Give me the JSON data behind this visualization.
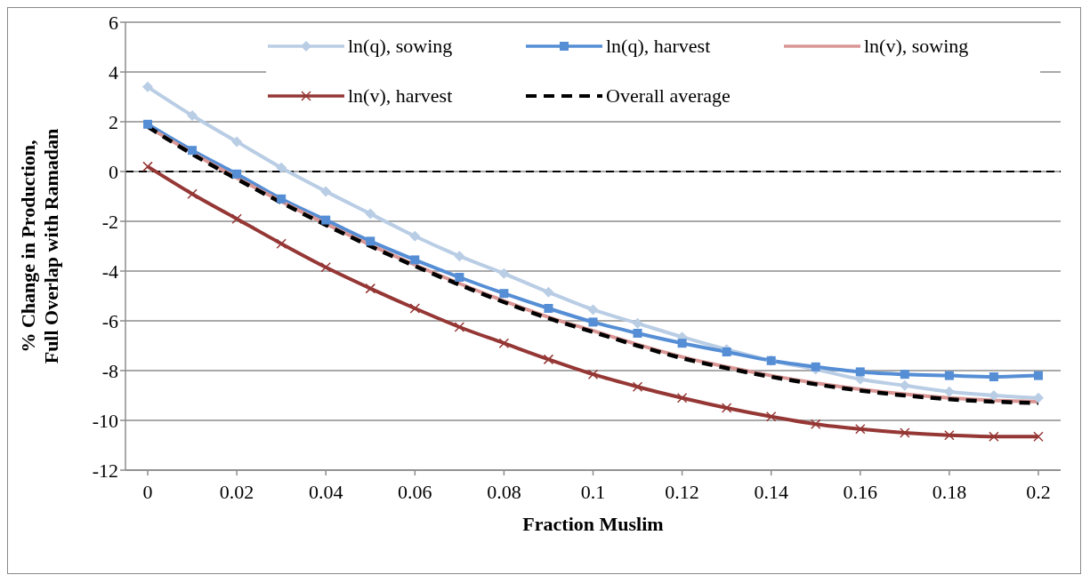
{
  "chart_data": {
    "type": "line",
    "xlabel": "Fraction Muslim",
    "ylabel": "% Change in Production, Full Overlap with Ramadan",
    "x": [
      0,
      0.01,
      0.02,
      0.03,
      0.04,
      0.05,
      0.06,
      0.07,
      0.08,
      0.09,
      0.1,
      0.11,
      0.12,
      0.13,
      0.14,
      0.15,
      0.16,
      0.17,
      0.18,
      0.19,
      0.2
    ],
    "xlim": [
      -0.005,
      0.205
    ],
    "xticks": [
      0,
      0.02,
      0.04,
      0.06,
      0.08,
      0.1,
      0.12,
      0.14,
      0.16,
      0.18,
      0.2
    ],
    "ylim": [
      -12,
      6
    ],
    "yticks": [
      -12,
      -10,
      -8,
      -6,
      -4,
      -2,
      0,
      2,
      4,
      6
    ],
    "grid": "y",
    "legend": "top right",
    "ref_lines": [
      {
        "axis": "y",
        "value": 0,
        "color": "#000000",
        "line_style": "dashed"
      }
    ],
    "series": [
      {
        "name": "ln(q), sowing",
        "color": "#b9cde5",
        "marker": "diamond",
        "line_style": "solid",
        "values": [
          3.4,
          2.25,
          1.2,
          0.15,
          -0.8,
          -1.7,
          -2.6,
          -3.4,
          -4.1,
          -4.85,
          -5.55,
          -6.1,
          -6.65,
          -7.15,
          -7.6,
          -7.95,
          -8.35,
          -8.6,
          -8.85,
          -9.0,
          -9.1
        ]
      },
      {
        "name": "ln(q), harvest",
        "color": "#558ed5",
        "marker": "square",
        "line_style": "solid",
        "values": [
          1.9,
          0.85,
          -0.1,
          -1.1,
          -1.95,
          -2.8,
          -3.55,
          -4.25,
          -4.9,
          -5.5,
          -6.05,
          -6.5,
          -6.9,
          -7.25,
          -7.6,
          -7.85,
          -8.05,
          -8.15,
          -8.2,
          -8.25,
          -8.2
        ]
      },
      {
        "name": "ln(v), sowing",
        "color": "#d99694",
        "marker": "none",
        "line_style": "solid",
        "values": [
          1.8,
          0.75,
          -0.25,
          -1.2,
          -2.1,
          -2.95,
          -3.75,
          -4.5,
          -5.2,
          -5.85,
          -6.4,
          -6.95,
          -7.45,
          -7.85,
          -8.2,
          -8.5,
          -8.75,
          -8.95,
          -9.1,
          -9.2,
          -9.25
        ]
      },
      {
        "name": "ln(v), harvest",
        "color": "#953735",
        "marker": "cross",
        "line_style": "solid",
        "values": [
          0.2,
          -0.9,
          -1.9,
          -2.9,
          -3.85,
          -4.7,
          -5.5,
          -6.25,
          -6.9,
          -7.55,
          -8.15,
          -8.65,
          -9.1,
          -9.5,
          -9.85,
          -10.15,
          -10.35,
          -10.5,
          -10.6,
          -10.65,
          -10.65
        ]
      },
      {
        "name": "Overall average",
        "color": "#000000",
        "marker": "none",
        "line_style": "dashed",
        "values": [
          1.8,
          0.7,
          -0.3,
          -1.25,
          -2.15,
          -3.0,
          -3.8,
          -4.55,
          -5.25,
          -5.9,
          -6.45,
          -7.0,
          -7.5,
          -7.9,
          -8.25,
          -8.55,
          -8.8,
          -9.0,
          -9.15,
          -9.25,
          -9.3
        ]
      }
    ]
  }
}
